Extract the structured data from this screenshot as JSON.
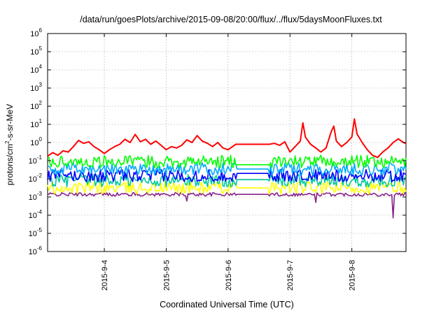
{
  "chart_data": {
    "type": "line",
    "title": "/data/run/goesPlots/archive/2015-09-08/20:00/flux/../flux/5daysMoonFluxes.txt",
    "xlabel": "Coordinated Universal Time (UTC)",
    "ylabel": {
      "prefix": "protons/cm",
      "superscript": "2",
      "suffix": "-s-sr-MeV"
    },
    "y_scale": "log",
    "ylim": [
      1e-06,
      1000000.0
    ],
    "y_ticks": [
      {
        "value": 1e-06,
        "base": "10",
        "exp": "-6"
      },
      {
        "value": 1e-05,
        "base": "10",
        "exp": "-5"
      },
      {
        "value": 0.0001,
        "base": "10",
        "exp": "-4"
      },
      {
        "value": 0.001,
        "base": "10",
        "exp": "-3"
      },
      {
        "value": 0.01,
        "base": "10",
        "exp": "-2"
      },
      {
        "value": 0.1,
        "base": "10",
        "exp": "-1"
      },
      {
        "value": 1,
        "base": "10",
        "exp": "0"
      },
      {
        "value": 10,
        "base": "10",
        "exp": "1"
      },
      {
        "value": 100,
        "base": "10",
        "exp": "2"
      },
      {
        "value": 1000,
        "base": "10",
        "exp": "3"
      },
      {
        "value": 10000,
        "base": "10",
        "exp": "4"
      },
      {
        "value": 100000,
        "base": "10",
        "exp": "5"
      },
      {
        "value": 1000000,
        "base": "10",
        "exp": "6"
      }
    ],
    "xlim": [
      "2015-09-03T02:00",
      "2015-09-08T21:00"
    ],
    "x_ticks": [
      {
        "value": "2015-09-04T00:00",
        "label": "2015-9-4"
      },
      {
        "value": "2015-09-05T00:00",
        "label": "2015-9-5"
      },
      {
        "value": "2015-09-06T00:00",
        "label": "2015-9-6"
      },
      {
        "value": "2015-09-07T00:00",
        "label": "2015-9-7"
      },
      {
        "value": "2015-09-08T00:00",
        "label": "2015-9-8"
      }
    ],
    "grid": true,
    "legend": "none",
    "series": [
      {
        "color": "#ff0000",
        "level": 0.8,
        "points": [
          [
            "2015-09-03T02:00",
            0.18
          ],
          [
            "2015-09-03T04:00",
            0.28
          ],
          [
            "2015-09-03T06:00",
            0.2
          ],
          [
            "2015-09-03T08:00",
            0.35
          ],
          [
            "2015-09-03T10:00",
            0.3
          ],
          [
            "2015-09-03T12:00",
            0.6
          ],
          [
            "2015-09-03T14:00",
            1.3
          ],
          [
            "2015-09-03T16:00",
            0.9
          ],
          [
            "2015-09-03T18:00",
            1.1
          ],
          [
            "2015-09-03T20:00",
            0.6
          ],
          [
            "2015-09-03T22:00",
            0.4
          ],
          [
            "2015-09-04T00:00",
            0.25
          ],
          [
            "2015-09-04T02:00",
            0.4
          ],
          [
            "2015-09-04T04:00",
            0.6
          ],
          [
            "2015-09-04T06:00",
            0.8
          ],
          [
            "2015-09-04T08:00",
            1.5
          ],
          [
            "2015-09-04T10:00",
            1.0
          ],
          [
            "2015-09-04T12:00",
            2.8
          ],
          [
            "2015-09-04T14:00",
            1.1
          ],
          [
            "2015-09-04T16:00",
            1.5
          ],
          [
            "2015-09-04T18:00",
            0.8
          ],
          [
            "2015-09-04T20:00",
            1.2
          ],
          [
            "2015-09-04T22:00",
            0.7
          ],
          [
            "2015-09-05T00:00",
            0.4
          ],
          [
            "2015-09-05T02:00",
            0.6
          ],
          [
            "2015-09-05T04:00",
            0.5
          ],
          [
            "2015-09-05T06:00",
            0.7
          ],
          [
            "2015-09-05T08:00",
            1.4
          ],
          [
            "2015-09-05T10:00",
            1.0
          ],
          [
            "2015-09-05T12:00",
            2.4
          ],
          [
            "2015-09-05T14:00",
            1.2
          ],
          [
            "2015-09-05T16:00",
            0.9
          ],
          [
            "2015-09-05T18:00",
            0.6
          ],
          [
            "2015-09-05T20:00",
            1.0
          ],
          [
            "2015-09-05T22:00",
            0.5
          ],
          [
            "2015-09-06T00:00",
            0.4
          ],
          [
            "2015-09-06T03:00",
            0.8
          ],
          [
            "2015-09-06T16:00",
            0.8
          ],
          [
            "2015-09-06T18:00",
            0.9
          ],
          [
            "2015-09-06T20:00",
            0.7
          ],
          [
            "2015-09-06T22:00",
            1.1
          ],
          [
            "2015-09-07T00:00",
            0.3
          ],
          [
            "2015-09-07T02:00",
            0.6
          ],
          [
            "2015-09-07T04:00",
            1.2
          ],
          [
            "2015-09-07T05:00",
            12
          ],
          [
            "2015-09-07T06:00",
            2.0
          ],
          [
            "2015-09-07T08:00",
            0.8
          ],
          [
            "2015-09-07T10:00",
            0.5
          ],
          [
            "2015-09-07T12:00",
            0.3
          ],
          [
            "2015-09-07T14:00",
            0.5
          ],
          [
            "2015-09-07T16:00",
            4.0
          ],
          [
            "2015-09-07T17:00",
            8.0
          ],
          [
            "2015-09-07T18:00",
            1.2
          ],
          [
            "2015-09-07T20:00",
            0.6
          ],
          [
            "2015-09-07T22:00",
            1.0
          ],
          [
            "2015-09-08T00:00",
            2.0
          ],
          [
            "2015-09-08T01:00",
            20
          ],
          [
            "2015-09-08T02:00",
            3.0
          ],
          [
            "2015-09-08T04:00",
            1.0
          ],
          [
            "2015-09-08T06:00",
            0.4
          ],
          [
            "2015-09-08T08:00",
            0.2
          ],
          [
            "2015-09-08T10:00",
            0.15
          ],
          [
            "2015-09-08T12:00",
            0.3
          ],
          [
            "2015-09-08T14:00",
            0.5
          ],
          [
            "2015-09-08T16:00",
            1.0
          ],
          [
            "2015-09-08T18:00",
            1.6
          ],
          [
            "2015-09-08T20:00",
            1.0
          ],
          [
            "2015-09-08T21:00",
            0.9
          ]
        ]
      },
      {
        "color": "#00ff00",
        "level": 0.09,
        "gap_value": 0.06
      },
      {
        "color": "#00aaff",
        "level": 0.035,
        "gap_value": 0.035
      },
      {
        "color": "#0000ff",
        "level": 0.015,
        "gap_value": 0.02
      },
      {
        "color": "#00c8a0",
        "level": 0.008,
        "gap_value": 0.009
      },
      {
        "color": "#ffff00",
        "level": 0.0032,
        "gap_value": 0.0032
      },
      {
        "color": "#882288",
        "level": 0.0014,
        "gap_value": 0.0014,
        "dips": [
          [
            "2015-09-05T08:00",
            0.0006
          ],
          [
            "2015-09-07T10:00",
            0.0005
          ],
          [
            "2015-09-08T16:00",
            7e-05
          ]
        ]
      }
    ],
    "data_gap": [
      "2015-09-06T03:00",
      "2015-09-06T16:00"
    ]
  }
}
